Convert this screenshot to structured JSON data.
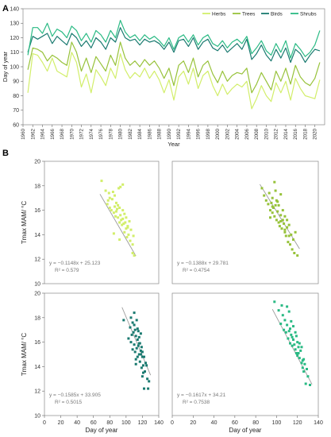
{
  "panel_a": {
    "letter": "A"
  },
  "panel_b": {
    "letter": "B"
  },
  "chart_data": [
    {
      "type": "line",
      "panel": "A",
      "xlabel": "Year",
      "ylabel": "Day of year",
      "ylim": [
        60,
        140
      ],
      "yticks": [
        60,
        70,
        80,
        90,
        100,
        110,
        120,
        130,
        140
      ],
      "x_tick_labels": [
        "1960",
        "1962",
        "1964",
        "1966",
        "1968",
        "1970",
        "1972",
        "1974",
        "1976",
        "1978",
        "1980",
        "1982",
        "1984",
        "1986",
        "1988",
        "1990",
        "1992",
        "1994",
        "1996",
        "1998",
        "2000",
        "2002",
        "2004",
        "2006",
        "2008",
        "2010",
        "2012",
        "2014",
        "2016",
        "2018",
        "2020"
      ],
      "legend_position": "top-right",
      "grid": false,
      "x": [
        1961,
        1962,
        1963,
        1964,
        1965,
        1966,
        1967,
        1968,
        1969,
        1970,
        1971,
        1972,
        1973,
        1974,
        1975,
        1976,
        1977,
        1978,
        1979,
        1980,
        1981,
        1982,
        1983,
        1984,
        1985,
        1986,
        1987,
        1988,
        1989,
        1990,
        1991,
        1992,
        1993,
        1994,
        1995,
        1996,
        1997,
        1998,
        1999,
        2000,
        2001,
        2002,
        2003,
        2004,
        2005,
        2006,
        2007,
        2008,
        2009,
        2010,
        2011,
        2012,
        2013,
        2014,
        2015,
        2016,
        2017,
        2018,
        2019,
        2020,
        2021
      ],
      "series": [
        {
          "name": "Herbs",
          "color": "#d2ee6a",
          "values": [
            82,
            109,
            108,
            103,
            97,
            106,
            97,
            95,
            93,
            110,
            103,
            86,
            95,
            82,
            98,
            93,
            87,
            99,
            92,
            109,
            98,
            92,
            96,
            93,
            99,
            92,
            97,
            91,
            82,
            91,
            77,
            93,
            97,
            88,
            99,
            85,
            94,
            97,
            87,
            80,
            88,
            81,
            85,
            88,
            86,
            90,
            71,
            78,
            87,
            80,
            76,
            89,
            82,
            90,
            77,
            92,
            85,
            80,
            79,
            78,
            91
          ]
        },
        {
          "name": "Trees",
          "color": "#97c23a",
          "values": [
            98,
            113,
            112,
            110,
            104,
            108,
            106,
            103,
            101,
            117,
            110,
            97,
            106,
            96,
            107,
            102,
            97,
            108,
            101,
            117,
            106,
            101,
            104,
            100,
            105,
            101,
            104,
            99,
            92,
            99,
            87,
            101,
            104,
            96,
            106,
            93,
            101,
            104,
            95,
            89,
            97,
            90,
            94,
            96,
            95,
            99,
            82,
            88,
            96,
            90,
            84,
            97,
            90,
            99,
            88,
            101,
            93,
            89,
            87,
            92,
            103
          ]
        },
        {
          "name": "Birds",
          "color": "#1a7a70",
          "values": [
            110,
            121,
            119,
            121,
            123,
            116,
            121,
            118,
            115,
            123,
            120,
            114,
            118,
            113,
            120,
            117,
            112,
            120,
            117,
            127,
            120,
            118,
            119,
            115,
            119,
            117,
            118,
            116,
            112,
            117,
            110,
            118,
            119,
            114,
            120,
            112,
            117,
            119,
            113,
            111,
            115,
            110,
            113,
            116,
            112,
            119,
            105,
            109,
            115,
            108,
            104,
            112,
            106,
            113,
            103,
            112,
            109,
            103,
            108,
            112,
            111
          ]
        },
        {
          "name": "Shrubs",
          "color": "#2aba84",
          "values": [
            108,
            127,
            127,
            123,
            130,
            121,
            126,
            124,
            120,
            128,
            125,
            118,
            123,
            117,
            125,
            122,
            117,
            125,
            120,
            132,
            124,
            120,
            122,
            118,
            122,
            119,
            121,
            118,
            114,
            120,
            112,
            120,
            122,
            117,
            122,
            115,
            120,
            122,
            116,
            114,
            118,
            113,
            117,
            119,
            116,
            121,
            109,
            113,
            118,
            111,
            108,
            116,
            110,
            118,
            106,
            116,
            112,
            107,
            110,
            115,
            125
          ]
        }
      ]
    },
    {
      "type": "scatter",
      "panel": "B-herbs",
      "series_label": "Herbs",
      "color": "#d2ee6a",
      "ylabel": "Tmax MAM/ °C",
      "ylim": [
        10,
        20
      ],
      "yticks": [
        10,
        12,
        14,
        16,
        18,
        20
      ],
      "xlim": [
        0,
        140
      ],
      "xticks": [
        0,
        20,
        40,
        60,
        80,
        100,
        120,
        140
      ],
      "equation": "y = −0.1148x + 25.123",
      "r2": "R² = 0.579",
      "slope": -0.1148,
      "intercept": 25.123,
      "x": [
        70,
        75,
        77,
        78,
        80,
        80,
        82,
        83,
        84,
        85,
        86,
        86,
        87,
        88,
        88,
        89,
        90,
        90,
        91,
        92,
        92,
        93,
        93,
        94,
        95,
        96,
        96,
        97,
        98,
        98,
        99,
        100,
        100,
        101,
        102,
        103,
        104,
        105,
        106,
        108,
        108,
        109,
        110,
        92,
        85,
        96,
        79,
        102
      ],
      "y": [
        18.4,
        17.6,
        16.5,
        16.8,
        16.2,
        17.0,
        16.0,
        16.9,
        17.5,
        15.8,
        16.3,
        17.2,
        15.5,
        16.6,
        15.9,
        16.1,
        15.4,
        16.4,
        17.8,
        15.0,
        16.2,
        15.6,
        17.9,
        15.2,
        14.8,
        16.0,
        15.3,
        14.9,
        15.7,
        14.2,
        15.0,
        14.5,
        15.4,
        13.8,
        14.6,
        14.0,
        15.1,
        13.5,
        14.4,
        13.2,
        12.5,
        13.9,
        12.3,
        13.6,
        14.1,
        18.1,
        17.4,
        14.7
      ]
    },
    {
      "type": "scatter",
      "panel": "B-trees",
      "series_label": "Trees",
      "color": "#97c23a",
      "xlim": [
        0,
        140
      ],
      "ylim": [
        10,
        20
      ],
      "equation": "y = −0.1388x + 29.781",
      "r2": "R² = 0.4754",
      "slope": -0.1388,
      "intercept": 29.781,
      "x": [
        86,
        88,
        90,
        92,
        93,
        94,
        95,
        96,
        96,
        97,
        98,
        98,
        99,
        100,
        100,
        101,
        102,
        102,
        103,
        104,
        104,
        105,
        106,
        106,
        107,
        108,
        108,
        109,
        110,
        110,
        111,
        112,
        113,
        114,
        115,
        116,
        117,
        118,
        120,
        96,
        99,
        104,
        108,
        112,
        94,
        101
      ],
      "y": [
        17.8,
        17.2,
        16.8,
        16.5,
        17.4,
        16.0,
        16.6,
        15.8,
        17.0,
        16.2,
        15.5,
        18.3,
        16.4,
        15.2,
        16.8,
        15.9,
        15.0,
        16.4,
        14.7,
        15.6,
        17.3,
        14.5,
        15.2,
        16.0,
        14.9,
        14.2,
        15.5,
        13.9,
        14.6,
        15.2,
        13.4,
        14.8,
        13.2,
        14.0,
        12.8,
        13.6,
        12.5,
        14.2,
        12.3,
        16.3,
        17.6,
        15.1,
        14.4,
        13.9,
        15.4,
        16.7
      ]
    },
    {
      "type": "scatter",
      "panel": "B-birds",
      "series_label": "Birds",
      "color": "#1a7a70",
      "ylabel": "Tmax MAM/ °C",
      "ylim": [
        10,
        20
      ],
      "yticks": [
        10,
        12,
        14,
        16,
        18,
        20
      ],
      "xlim": [
        0,
        140
      ],
      "xticks": [
        0,
        20,
        40,
        60,
        80,
        100,
        120,
        140
      ],
      "xlabel": "Day of year",
      "equation": "y = −0.1585x + 33.905",
      "r2": "R² = 0.5015",
      "slope": -0.1585,
      "intercept": 33.905,
      "x": [
        97,
        103,
        105,
        106,
        107,
        108,
        108,
        109,
        110,
        110,
        111,
        111,
        112,
        112,
        113,
        113,
        114,
        114,
        115,
        115,
        116,
        116,
        117,
        117,
        118,
        118,
        119,
        119,
        120,
        120,
        121,
        121,
        122,
        122,
        123,
        124,
        125,
        126,
        127,
        128,
        110,
        114,
        118,
        106,
        112,
        120,
        116
      ],
      "y": [
        17.8,
        16.3,
        17.2,
        18.0,
        16.6,
        17.6,
        15.4,
        16.8,
        18.4,
        15.8,
        17.0,
        15.2,
        16.5,
        14.6,
        17.8,
        15.5,
        16.2,
        14.8,
        15.7,
        16.9,
        15.0,
        16.4,
        14.4,
        15.9,
        15.3,
        16.7,
        13.9,
        15.6,
        14.8,
        15.2,
        14.1,
        13.5,
        12.2,
        14.8,
        13.6,
        14.3,
        14.1,
        13.0,
        12.2,
        12.8,
        17.4,
        17.1,
        15.0,
        16.0,
        14.2,
        13.2,
        15.9
      ]
    },
    {
      "type": "scatter",
      "panel": "B-shrubs",
      "series_label": "Shrubs",
      "color": "#2aba84",
      "xlim": [
        0,
        140
      ],
      "xticks": [
        0,
        20,
        40,
        60,
        80,
        100,
        120,
        140
      ],
      "ylim": [
        10,
        20
      ],
      "xlabel": "Day of year",
      "equation": "y = −0.1617x + 34.21",
      "r2": "R² = 0.7538",
      "slope": -0.1617,
      "intercept": 34.21,
      "x": [
        98,
        102,
        104,
        106,
        107,
        108,
        109,
        110,
        111,
        112,
        112,
        113,
        114,
        114,
        115,
        116,
        116,
        117,
        118,
        118,
        119,
        120,
        120,
        121,
        122,
        122,
        123,
        124,
        124,
        125,
        126,
        126,
        127,
        128,
        129,
        130,
        132,
        110,
        115,
        121,
        105,
        113,
        119,
        125
      ],
      "y": [
        19.3,
        18.6,
        17.5,
        18.2,
        17.0,
        17.8,
        16.8,
        17.4,
        16.3,
        16.9,
        18.5,
        15.9,
        16.6,
        17.7,
        15.7,
        16.2,
        17.3,
        15.8,
        15.4,
        16.8,
        15.1,
        16.0,
        14.9,
        15.6,
        14.7,
        15.9,
        15.3,
        14.3,
        15.6,
        13.9,
        14.6,
        13.6,
        14.2,
        12.6,
        13.8,
        13.2,
        12.5,
        18.9,
        16.4,
        15.1,
        19.0,
        17.1,
        16.5,
        14.5
      ]
    }
  ]
}
